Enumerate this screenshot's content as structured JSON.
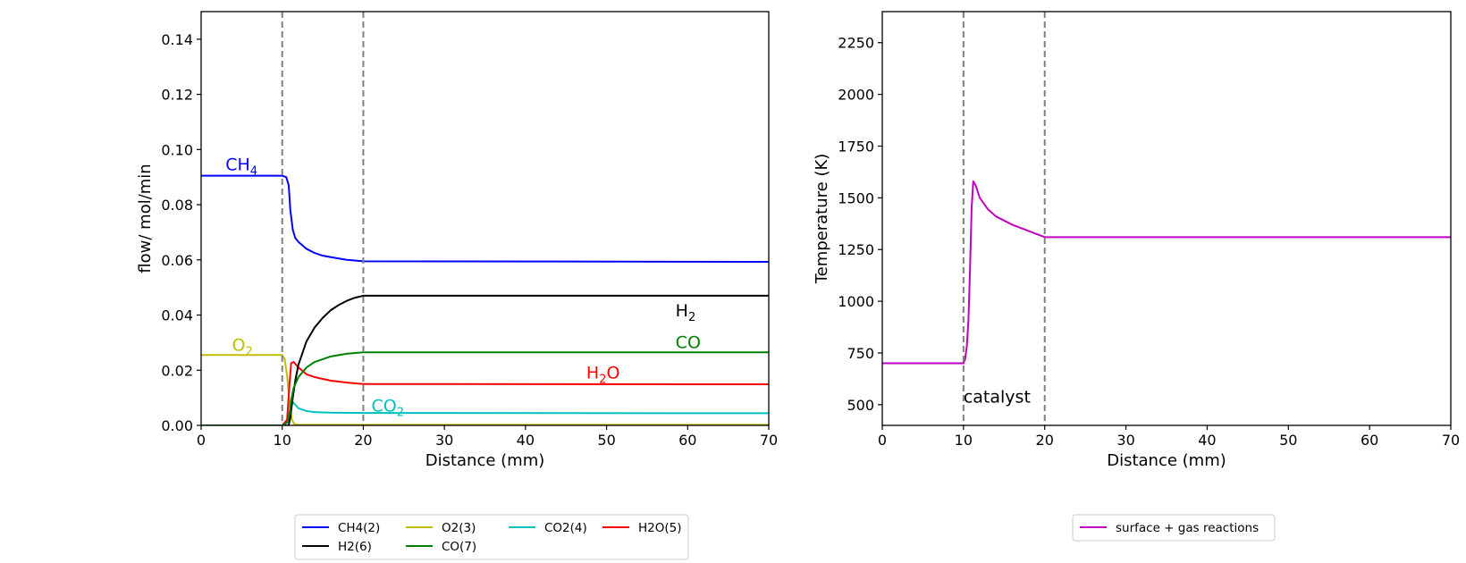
{
  "chart_data": [
    {
      "type": "line",
      "xlabel": "Distance (mm)",
      "ylabel": "flow/ mol/min",
      "xlim": [
        0,
        70
      ],
      "ylim": [
        0,
        0.15
      ],
      "xticks": [
        "0",
        "10",
        "20",
        "30",
        "40",
        "50",
        "60",
        "70"
      ],
      "yticks": [
        "0.00",
        "0.02",
        "0.04",
        "0.06",
        "0.08",
        "0.10",
        "0.12",
        "0.14"
      ],
      "vlines": [
        10,
        20
      ],
      "grid": false,
      "legend_position": "bottom-center, below axes",
      "series": [
        {
          "name": "CH4(2)",
          "color": "#0000ff",
          "x": [
            0,
            10,
            10.5,
            10.8,
            11,
            11.3,
            11.6,
            12,
            13,
            14,
            15,
            16,
            18,
            20,
            70
          ],
          "y": [
            0.0905,
            0.0905,
            0.09,
            0.087,
            0.078,
            0.071,
            0.068,
            0.0665,
            0.064,
            0.0625,
            0.0615,
            0.061,
            0.06,
            0.0595,
            0.0593
          ]
        },
        {
          "name": "O2(3)",
          "color": "#bfbf00",
          "x": [
            0,
            10,
            10.3,
            10.6,
            10.9,
            11.2,
            11.5,
            12,
            70
          ],
          "y": [
            0.0255,
            0.0255,
            0.024,
            0.018,
            0.008,
            0.002,
            0.0005,
            0.0002,
            0.0002
          ]
        },
        {
          "name": "CO2(4)",
          "color": "#00bfbf",
          "x": [
            0,
            10,
            10.6,
            11,
            11.3,
            11.6,
            12,
            13,
            14,
            16,
            20,
            70
          ],
          "y": [
            0,
            0,
            0.001,
            0.006,
            0.0085,
            0.0075,
            0.0062,
            0.0052,
            0.0048,
            0.0046,
            0.0045,
            0.0044
          ]
        },
        {
          "name": "H2O(5)",
          "color": "#ff0000",
          "x": [
            0,
            10,
            10.6,
            10.9,
            11.1,
            11.4,
            12,
            13,
            14,
            16,
            18,
            20,
            70
          ],
          "y": [
            0,
            0,
            0.002,
            0.015,
            0.0225,
            0.023,
            0.021,
            0.0185,
            0.0175,
            0.0162,
            0.0155,
            0.015,
            0.0149
          ]
        },
        {
          "name": "H2(6)",
          "color": "#000000",
          "x": [
            0,
            10,
            10.8,
            11,
            11.3,
            11.6,
            12,
            13,
            14,
            15,
            16,
            17,
            18,
            19,
            20,
            70
          ],
          "y": [
            0,
            0,
            0,
            0.003,
            0.01,
            0.016,
            0.022,
            0.0305,
            0.0355,
            0.039,
            0.0418,
            0.0437,
            0.0452,
            0.0463,
            0.047,
            0.047
          ]
        },
        {
          "name": "CO(7)",
          "color": "#008000",
          "x": [
            0,
            10,
            10.6,
            10.9,
            11.1,
            11.4,
            12,
            13,
            14,
            16,
            18,
            20,
            70
          ],
          "y": [
            0,
            0,
            0.001,
            0.004,
            0.009,
            0.0135,
            0.0175,
            0.021,
            0.023,
            0.025,
            0.026,
            0.0265,
            0.0265
          ]
        }
      ],
      "annotations": [
        {
          "base": "CH",
          "sub": "4",
          "color": "#0000ff",
          "x": 3,
          "y": 0.0925
        },
        {
          "base": "O",
          "sub": "2",
          "color": "#bfbf00",
          "x": 3.8,
          "y": 0.027
        },
        {
          "base": "H",
          "sub": "2",
          "color": "#000000",
          "x": 58.5,
          "y": 0.0395
        },
        {
          "base": "CO",
          "sub": "",
          "color": "#008000",
          "x": 58.5,
          "y": 0.028
        },
        {
          "base": "H",
          "sub": "2",
          "tail": "O",
          "color": "#ff0000",
          "x": 47.5,
          "y": 0.017
        },
        {
          "base": "CO",
          "sub": "2",
          "color": "#00bfbf",
          "x": 21,
          "y": 0.005
        }
      ]
    },
    {
      "type": "line",
      "xlabel": "Distance (mm)",
      "ylabel": "Temperature (K)",
      "xlim": [
        0,
        70
      ],
      "ylim": [
        400,
        2400
      ],
      "xticks": [
        "0",
        "10",
        "20",
        "30",
        "40",
        "50",
        "60",
        "70"
      ],
      "yticks": [
        "500",
        "750",
        "1000",
        "1250",
        "1500",
        "1750",
        "2000",
        "2250"
      ],
      "vlines": [
        10,
        20
      ],
      "grid": false,
      "legend_position": "bottom-center, below axes",
      "series": [
        {
          "name": "surface + gas reactions",
          "color": "#bf00bf",
          "x": [
            0,
            10,
            10.2,
            10.4,
            10.6,
            10.8,
            11,
            11.2,
            11.5,
            12,
            13,
            14,
            16,
            18,
            20,
            70
          ],
          "y": [
            700,
            700,
            720,
            780,
            900,
            1150,
            1450,
            1580,
            1560,
            1500,
            1445,
            1410,
            1370,
            1340,
            1310,
            1310
          ]
        }
      ],
      "annotations": [
        {
          "base": "catalyst",
          "sub": "",
          "color": "#000000",
          "x": 10,
          "y": 510
        }
      ]
    }
  ]
}
